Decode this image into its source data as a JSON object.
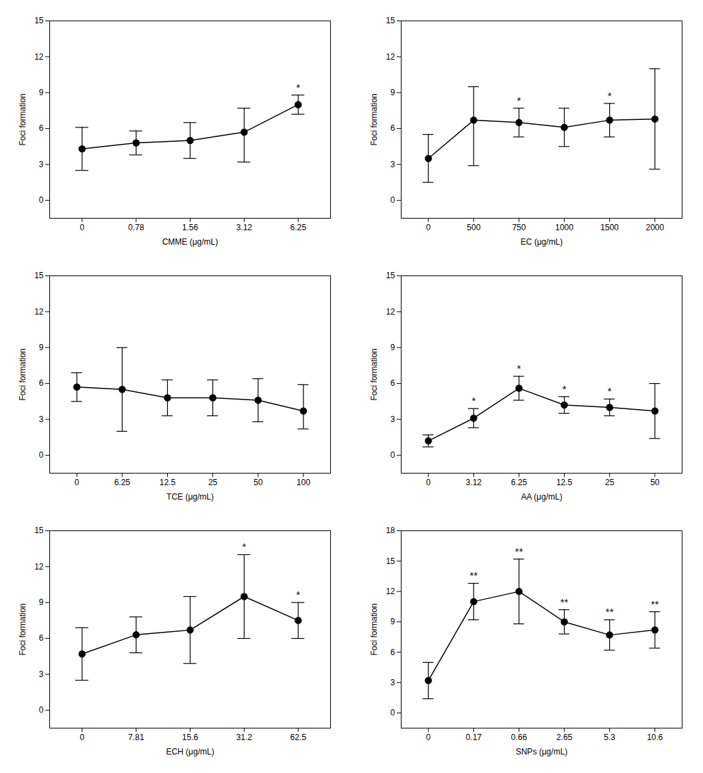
{
  "chart_data": [
    {
      "type": "line",
      "xlabel": "CMME (μg/mL)",
      "ylabel": "Foci formation",
      "categories": [
        "0",
        "0.78",
        "1.56",
        "3.12",
        "6.25"
      ],
      "values": [
        4.3,
        4.8,
        5.0,
        5.7,
        8.0
      ],
      "yerr_upper": [
        1.8,
        1.0,
        1.5,
        2.0,
        0.8
      ],
      "yerr_lower": [
        1.8,
        1.0,
        1.5,
        2.5,
        0.8
      ],
      "annotations": [
        null,
        null,
        null,
        null,
        "*"
      ],
      "ylim": [
        -1.5,
        15
      ],
      "yticks": [
        0,
        3,
        6,
        9,
        12,
        15
      ],
      "color": "#000000",
      "marker": "circle",
      "line_style": "solid",
      "grid": false
    },
    {
      "type": "line",
      "xlabel": "EC (μg/mL)",
      "ylabel": "Foci formation",
      "categories": [
        "0",
        "500",
        "750",
        "1000",
        "1500",
        "2000"
      ],
      "values": [
        3.5,
        6.7,
        6.5,
        6.1,
        6.7,
        6.8
      ],
      "yerr_upper": [
        2.0,
        2.8,
        1.2,
        1.6,
        1.4,
        4.2
      ],
      "yerr_lower": [
        2.0,
        3.8,
        1.2,
        1.6,
        1.4,
        4.2
      ],
      "annotations": [
        null,
        null,
        "*",
        null,
        "*",
        null
      ],
      "ylim": [
        -1.5,
        15
      ],
      "yticks": [
        0,
        3,
        6,
        9,
        12,
        15
      ],
      "color": "#000000",
      "marker": "circle",
      "line_style": "solid",
      "grid": false
    },
    {
      "type": "line",
      "xlabel": "TCE (μg/mL)",
      "ylabel": "Foci formation",
      "categories": [
        "0",
        "6.25",
        "12.5",
        "25",
        "50",
        "100"
      ],
      "values": [
        5.7,
        5.5,
        4.8,
        4.8,
        4.6,
        3.7
      ],
      "yerr_upper": [
        1.2,
        3.5,
        1.5,
        1.5,
        1.8,
        2.2
      ],
      "yerr_lower": [
        1.2,
        3.5,
        1.5,
        1.5,
        1.8,
        1.5
      ],
      "annotations": [
        null,
        null,
        null,
        null,
        null,
        null
      ],
      "ylim": [
        -1.5,
        15
      ],
      "yticks": [
        0,
        3,
        6,
        9,
        12,
        15
      ],
      "color": "#000000",
      "marker": "circle",
      "line_style": "solid",
      "grid": false
    },
    {
      "type": "line",
      "xlabel": "AA (μg/mL)",
      "ylabel": "Foci formation",
      "categories": [
        "0",
        "3.12",
        "6.25",
        "12.5",
        "25",
        "50"
      ],
      "values": [
        1.2,
        3.1,
        5.6,
        4.2,
        4.0,
        3.7
      ],
      "yerr_upper": [
        0.5,
        0.8,
        1.0,
        0.7,
        0.7,
        2.3
      ],
      "yerr_lower": [
        0.5,
        0.8,
        1.0,
        0.7,
        0.7,
        2.3
      ],
      "annotations": [
        null,
        "*",
        "*",
        "*",
        "*",
        null
      ],
      "ylim": [
        -1.5,
        15
      ],
      "yticks": [
        0,
        3,
        6,
        9,
        12,
        15
      ],
      "color": "#000000",
      "marker": "circle",
      "line_style": "solid",
      "grid": false
    },
    {
      "type": "line",
      "xlabel": "ECH (μg/mL)",
      "ylabel": "Foci formation",
      "categories": [
        "0",
        "7.81",
        "15.6",
        "31.2",
        "62.5"
      ],
      "values": [
        4.7,
        6.3,
        6.7,
        9.5,
        7.5
      ],
      "yerr_upper": [
        2.2,
        1.5,
        2.8,
        3.5,
        1.5
      ],
      "yerr_lower": [
        2.2,
        1.5,
        2.8,
        3.5,
        1.5
      ],
      "annotations": [
        null,
        null,
        null,
        "*",
        "*"
      ],
      "ylim": [
        -1.5,
        15
      ],
      "yticks": [
        0,
        3,
        6,
        9,
        12,
        15
      ],
      "color": "#000000",
      "marker": "circle",
      "line_style": "solid",
      "grid": false
    },
    {
      "type": "line",
      "xlabel": "SNPs (μg/mL)",
      "ylabel": "Foci formation",
      "categories": [
        "0",
        "0.17",
        "0.66",
        "2.65",
        "5.3",
        "10.6"
      ],
      "values": [
        3.2,
        11.0,
        12.0,
        9.0,
        7.7,
        8.2
      ],
      "yerr_upper": [
        1.8,
        1.8,
        3.2,
        1.2,
        1.5,
        1.8
      ],
      "yerr_lower": [
        1.8,
        1.8,
        3.2,
        1.2,
        1.5,
        1.8
      ],
      "annotations": [
        null,
        "**",
        "**",
        "**",
        "**",
        "**"
      ],
      "ylim": [
        -1.5,
        18
      ],
      "yticks": [
        0,
        3,
        6,
        9,
        12,
        15,
        18
      ],
      "color": "#000000",
      "marker": "circle",
      "line_style": "solid",
      "grid": false
    }
  ]
}
